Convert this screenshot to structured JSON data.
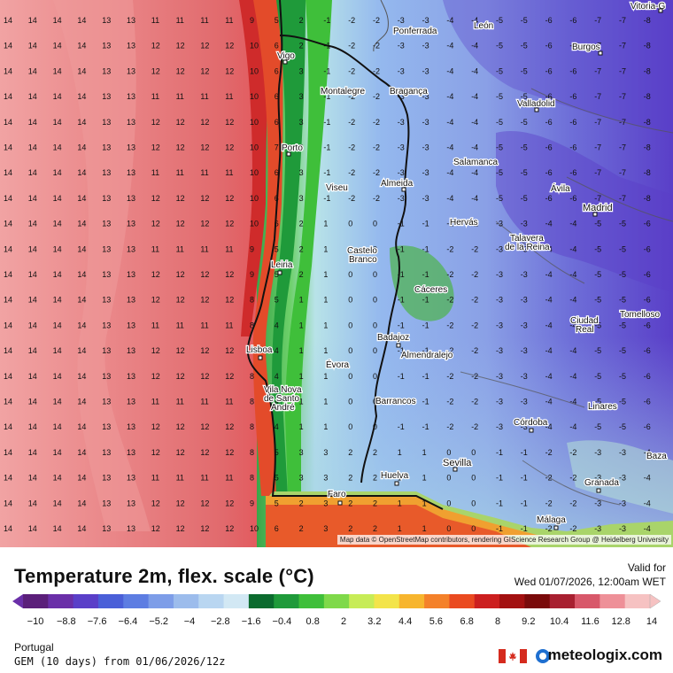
{
  "map": {
    "labels": {
      "vigo": "Vigo",
      "porto": "Porto",
      "leiria": "Leiria",
      "lisboa": "Lisboa",
      "montalegre": "Montalegre",
      "braganca": "Bragança",
      "viseu": "Viseu",
      "almeida": "Almeida",
      "castelo_branco_1": "Castelo",
      "castelo_branco_2": "Branco",
      "evora": "Évora",
      "badajoz": "Badajoz",
      "almendralejo": "Almendralejo",
      "caceres": "Cáceres",
      "barrancos": "Barrancos",
      "vila_nova_1": "Vila Nova",
      "vila_nova_2": "de Santo",
      "vila_nova_3": "André",
      "faro": "Faro",
      "huelva": "Huelva",
      "sevilla": "Sevilla",
      "cordoba": "Córdoba",
      "malaga": "Málaga",
      "granada": "Granada",
      "linares": "Linares",
      "baza": "Baza",
      "ciudad_real_1": "Ciudad",
      "ciudad_real_2": "Real",
      "tomelloso": "Tomelloso",
      "talavera_1": "Talavera",
      "talavera_2": "de la Reina",
      "madrid": "Madrid",
      "avila": "Ávila",
      "salamanca": "Salamanca",
      "valladolid": "Valladolid",
      "burgos": "Burgos",
      "leon": "León",
      "ponferrada": "Ponferrada",
      "vitoria": "Vitoria-G",
      "hervas": "Hervás"
    },
    "attribution": "Map data © OpenStreetMap contributors, rendering GIScience Research Group @ Heidelberg University"
  },
  "header": {
    "title": "Temperature 2m, flex. scale (°C)",
    "valid_label": "Valid for",
    "valid_date": "Wed 01/07/2026, 12:00am WET"
  },
  "legend": {
    "ticks": [
      "−10",
      "−8.8",
      "−7.6",
      "−6.4",
      "−5.2",
      "−4",
      "−2.8",
      "−1.6",
      "−0.4",
      "0.8",
      "2",
      "3.2",
      "4.4",
      "5.6",
      "6.8",
      "8",
      "9.2",
      "10.4",
      "11.6",
      "12.8",
      "14"
    ],
    "colors": [
      "#5b1f7a",
      "#6a2fa8",
      "#5a3fc8",
      "#4a5fd8",
      "#5d7de2",
      "#7d9de8",
      "#9cbcec",
      "#b9d6f1",
      "#d2e8f4",
      "#0b6b2e",
      "#1f9a3a",
      "#3fbf3a",
      "#7fd94a",
      "#c7ec57",
      "#f3e44a",
      "#f7b52e",
      "#f4812a",
      "#ea4a20",
      "#cc1f1f",
      "#a31010",
      "#7a0a0a",
      "#a82030",
      "#d8586a",
      "#ee9098",
      "#f6c2c2"
    ]
  },
  "footer": {
    "region": "Portugal",
    "model": "GEM (10 days) from 01/06/2026/12z",
    "brand": "meteologix.com"
  },
  "colors": {
    "sea_warm": "#e56a6e",
    "sea_outer": "#ec8f8f",
    "coast_hot": "#d71f22",
    "land_green": "#3aa64a",
    "land_cold": "#8aa8e6",
    "interior_cold": "#5c4fcf"
  }
}
